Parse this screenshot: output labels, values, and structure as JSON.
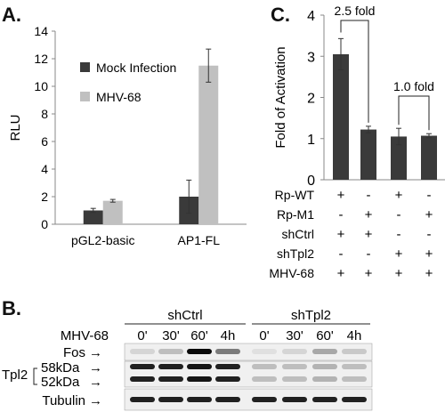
{
  "panels": {
    "a": "A.",
    "b": "B.",
    "c": "C."
  },
  "colors": {
    "mock": "#3a3a3a",
    "mhv": "#c0c0c0",
    "bar_c": "#3a3a3a",
    "axis": "#888888",
    "blot_bg": "#f0f0f0"
  },
  "chart_data": [
    {
      "id": "A",
      "type": "bar",
      "ylabel": "RLU",
      "ylim": [
        0,
        14
      ],
      "yticks": [
        0,
        2,
        4,
        6,
        8,
        10,
        12,
        14
      ],
      "grid": false,
      "legend_placement": "top-right",
      "categories": [
        "pGL2-basic",
        "AP1-FL"
      ],
      "series": [
        {
          "name": "Mock Infection",
          "values": [
            1.0,
            2.0
          ],
          "errors": [
            0.15,
            1.2
          ]
        },
        {
          "name": "MHV-68",
          "values": [
            1.7,
            11.5
          ],
          "errors": [
            0.1,
            1.2
          ]
        }
      ]
    },
    {
      "id": "C",
      "type": "bar",
      "ylabel": "Fold of Activation",
      "ylim": [
        0,
        4
      ],
      "yticks": [
        0,
        1,
        2,
        3,
        4
      ],
      "grid": false,
      "values": [
        3.05,
        1.22,
        1.05,
        1.07
      ],
      "errors": [
        0.38,
        0.08,
        0.2,
        0.05
      ],
      "annotations": [
        {
          "label": "2.5 fold",
          "from": 0,
          "to": 1
        },
        {
          "label": "1.0 fold",
          "from": 2,
          "to": 3
        }
      ],
      "condition_rows": [
        {
          "label": "Rp-WT",
          "marks": [
            "+",
            "-",
            "+",
            "-"
          ]
        },
        {
          "label": "Rp-M1",
          "marks": [
            "-",
            "+",
            "-",
            "+"
          ]
        },
        {
          "label": "shCtrl",
          "marks": [
            "+",
            "+",
            "-",
            "-"
          ]
        },
        {
          "label": "shTpl2",
          "marks": [
            "-",
            "-",
            "+",
            "+"
          ]
        },
        {
          "label": "MHV-68",
          "marks": [
            "+",
            "+",
            "+",
            "+"
          ]
        }
      ]
    }
  ],
  "blot": {
    "groups": [
      "shCtrl",
      "shTpl2"
    ],
    "time_label": "MHV-68",
    "timepoints": [
      "0'",
      "30'",
      "60'",
      "4h",
      "0'",
      "30'",
      "60'",
      "4h"
    ],
    "row_fos": "Fos",
    "row_tpl2": "Tpl2",
    "size_58": "58kDa",
    "size_52": "52kDa",
    "row_tubulin": "Tubulin",
    "arrow": "→",
    "fos_signal": [
      0.1,
      0.2,
      1.0,
      0.5,
      0.05,
      0.1,
      0.3,
      0.15
    ],
    "tpl2_signal": [
      0.9,
      0.9,
      0.95,
      0.9,
      0.2,
      0.2,
      0.25,
      0.2
    ],
    "tubulin_signal": [
      0.9,
      0.9,
      0.9,
      0.9,
      0.9,
      0.9,
      0.9,
      0.9
    ]
  }
}
